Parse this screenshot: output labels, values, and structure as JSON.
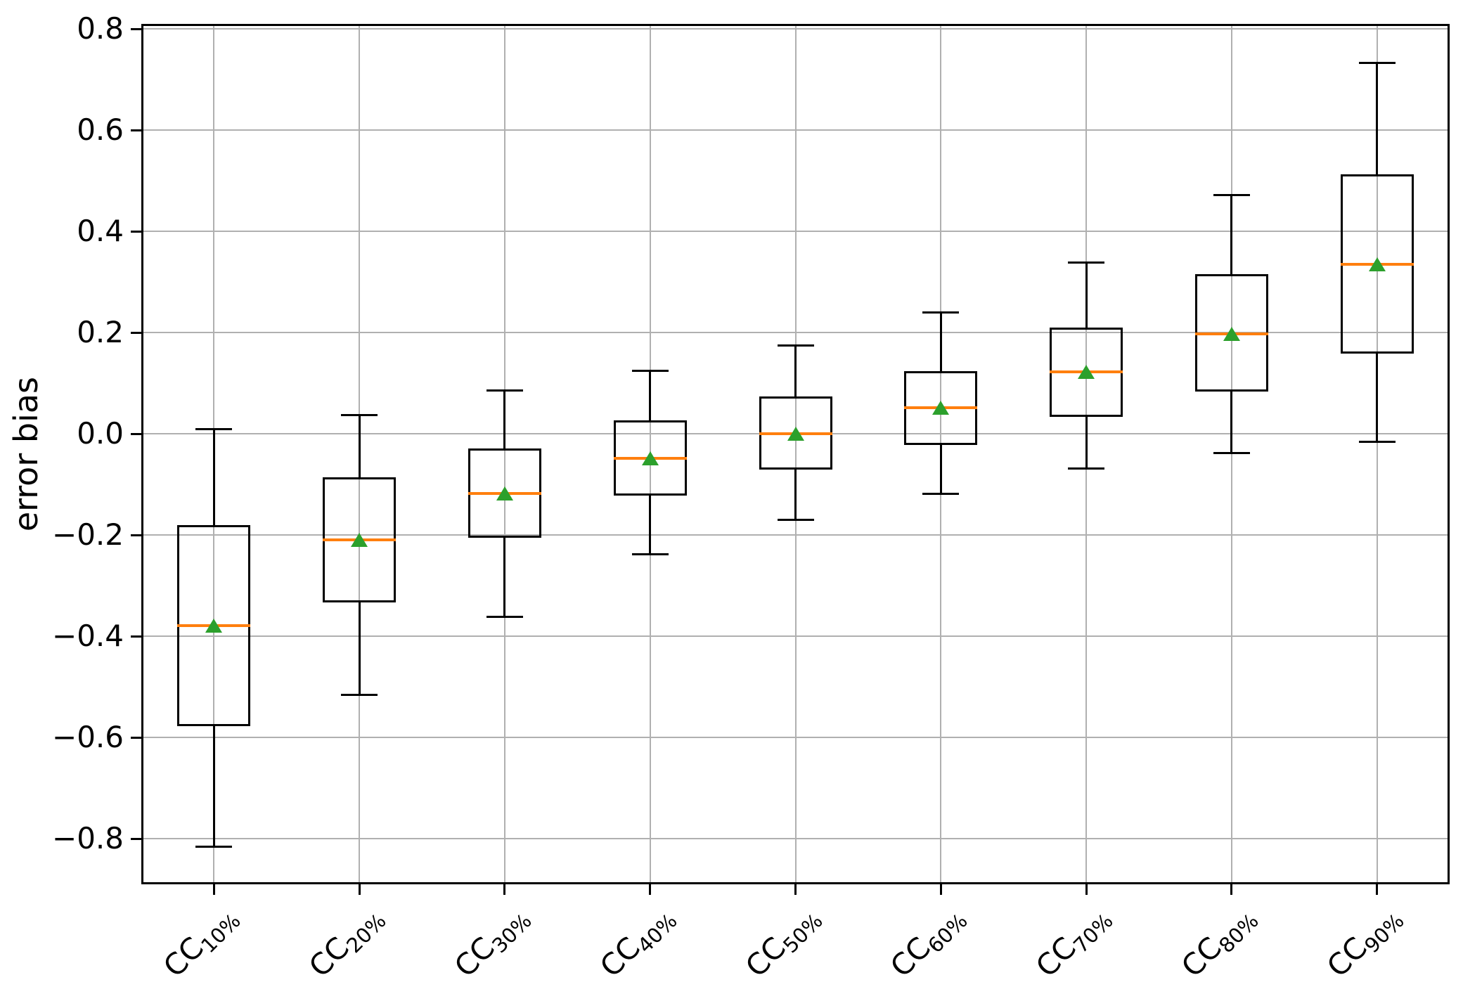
{
  "chart_data": {
    "type": "boxplot",
    "title": "",
    "xlabel": "",
    "ylabel": "error bias",
    "ylim": [
      -0.89,
      0.81
    ],
    "yticks": [
      0.8,
      0.6,
      0.4,
      0.2,
      0.0,
      -0.2,
      -0.4,
      -0.6,
      -0.8
    ],
    "ytick_labels": [
      "0.8",
      "0.6",
      "0.4",
      "0.2",
      "0.0",
      "−0.2",
      "−0.4",
      "−0.6",
      "−0.8"
    ],
    "grid": true,
    "legend": "none",
    "categories": [
      "CC10%",
      "CC20%",
      "CC30%",
      "CC40%",
      "CC50%",
      "CC60%",
      "CC70%",
      "CC80%",
      "CC90%"
    ],
    "series": [
      {
        "label": "CC10%",
        "label_base": "CC",
        "label_sub": "10%",
        "whislo": -0.815,
        "q1": -0.577,
        "med": -0.379,
        "q3": -0.18,
        "whishi": 0.01,
        "mean": -0.379
      },
      {
        "label": "CC20%",
        "label_base": "CC",
        "label_sub": "20%",
        "whislo": -0.516,
        "q1": -0.333,
        "med": -0.209,
        "q3": -0.086,
        "whishi": 0.037,
        "mean": -0.209
      },
      {
        "label": "CC30%",
        "label_base": "CC",
        "label_sub": "30%",
        "whislo": -0.362,
        "q1": -0.205,
        "med": -0.118,
        "q3": -0.029,
        "whishi": 0.086,
        "mean": -0.118
      },
      {
        "label": "CC40%",
        "label_base": "CC",
        "label_sub": "40%",
        "whislo": -0.238,
        "q1": -0.122,
        "med": -0.048,
        "q3": 0.026,
        "whishi": 0.124,
        "mean": -0.048
      },
      {
        "label": "CC50%",
        "label_base": "CC",
        "label_sub": "50%",
        "whislo": -0.17,
        "q1": -0.07,
        "med": 0.0,
        "q3": 0.074,
        "whishi": 0.175,
        "mean": 0.0
      },
      {
        "label": "CC60%",
        "label_base": "CC",
        "label_sub": "60%",
        "whislo": -0.119,
        "q1": -0.022,
        "med": 0.051,
        "q3": 0.124,
        "whishi": 0.24,
        "mean": 0.051
      },
      {
        "label": "CC70%",
        "label_base": "CC",
        "label_sub": "70%",
        "whislo": -0.068,
        "q1": 0.034,
        "med": 0.122,
        "q3": 0.21,
        "whishi": 0.338,
        "mean": 0.122
      },
      {
        "label": "CC80%",
        "label_base": "CC",
        "label_sub": "80%",
        "whislo": -0.038,
        "q1": 0.084,
        "med": 0.197,
        "q3": 0.315,
        "whishi": 0.472,
        "mean": 0.197
      },
      {
        "label": "CC90%",
        "label_base": "CC",
        "label_sub": "90%",
        "whislo": -0.016,
        "q1": 0.158,
        "med": 0.335,
        "q3": 0.513,
        "whishi": 0.733,
        "mean": 0.335
      }
    ],
    "colors": {
      "box_edge": "#000000",
      "whisker": "#000000",
      "median": "#ff7f0e",
      "mean_marker": "#2ca02c",
      "grid": "#b0b0b0",
      "background": "#ffffff",
      "text": "#000000"
    },
    "marker": {
      "mean_shape": "triangle-up"
    }
  }
}
